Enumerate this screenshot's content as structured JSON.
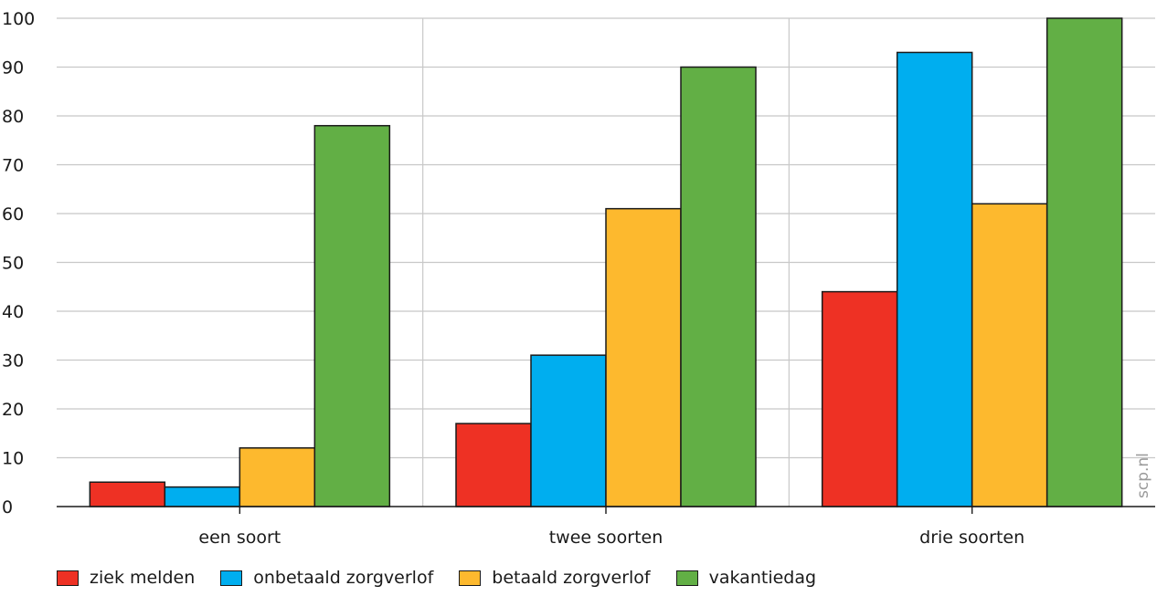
{
  "chart_data": {
    "type": "bar",
    "categories": [
      "een soort",
      "twee soorten",
      "drie soorten"
    ],
    "series": [
      {
        "name": "ziek melden",
        "color": "#ee3124",
        "values": [
          5,
          17,
          44
        ]
      },
      {
        "name": "onbetaald zorgverlof",
        "color": "#00aeef",
        "values": [
          4,
          31,
          93
        ]
      },
      {
        "name": "betaald zorgverlof",
        "color": "#fdb92e",
        "values": [
          12,
          61,
          62
        ]
      },
      {
        "name": "vakantiedag",
        "color": "#62af45",
        "values": [
          78,
          90,
          100
        ]
      }
    ],
    "ylim": [
      0,
      100
    ],
    "yticks": [
      0,
      10,
      20,
      30,
      40,
      50,
      60,
      70,
      80,
      90,
      100
    ],
    "grid": true,
    "legend": "bottom",
    "watermark": "scp.nl"
  }
}
